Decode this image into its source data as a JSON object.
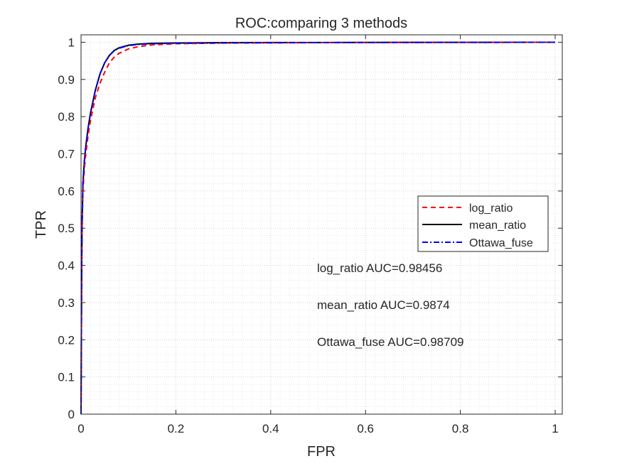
{
  "chart_data": {
    "type": "line",
    "title": "ROC:comparing 3 methods",
    "xlabel": "FPR",
    "ylabel": "TPR",
    "xlim": [
      0,
      1.015
    ],
    "ylim": [
      0,
      1.02
    ],
    "xticks": [
      0,
      0.2,
      0.4,
      0.6,
      0.8,
      1
    ],
    "xtick_labels": [
      "0",
      "0.2",
      "0.4",
      "0.6",
      "0.8",
      "1"
    ],
    "yticks": [
      0,
      0.1,
      0.2,
      0.3,
      0.4,
      0.5,
      0.6,
      0.7,
      0.8,
      0.9,
      1
    ],
    "ytick_labels": [
      "0",
      "0.1",
      "0.2",
      "0.3",
      "0.4",
      "0.5",
      "0.6",
      "0.7",
      "0.8",
      "0.9",
      "1"
    ],
    "grid": "on (major and minor)",
    "legend_position": "right",
    "series": [
      {
        "name": "log_ratio",
        "color": "#ff0000",
        "style": "dashed",
        "x": [
          0,
          0.001,
          0.002,
          0.004,
          0.007,
          0.01,
          0.015,
          0.02,
          0.03,
          0.04,
          0.05,
          0.06,
          0.07,
          0.08,
          0.1,
          0.12,
          0.15,
          0.2,
          0.3,
          0.5,
          0.7,
          1.0
        ],
        "y": [
          0,
          0.3,
          0.48,
          0.6,
          0.66,
          0.7,
          0.75,
          0.79,
          0.85,
          0.89,
          0.92,
          0.945,
          0.96,
          0.97,
          0.982,
          0.988,
          0.993,
          0.996,
          0.998,
          0.999,
          0.9995,
          1.0
        ]
      },
      {
        "name": "mean_ratio",
        "color": "#000000",
        "style": "solid",
        "x": [
          0,
          0.001,
          0.002,
          0.004,
          0.007,
          0.01,
          0.015,
          0.02,
          0.03,
          0.04,
          0.05,
          0.06,
          0.07,
          0.08,
          0.1,
          0.12,
          0.15,
          0.2,
          0.3,
          0.5,
          0.7,
          1.0
        ],
        "y": [
          0,
          0.3,
          0.5,
          0.62,
          0.68,
          0.72,
          0.77,
          0.81,
          0.87,
          0.915,
          0.945,
          0.965,
          0.978,
          0.985,
          0.992,
          0.995,
          0.997,
          0.998,
          0.999,
          0.9993,
          0.9997,
          1.0
        ]
      },
      {
        "name": "Ottawa_fuse",
        "color": "#0000ff",
        "style": "dash-dot",
        "x": [
          0,
          0.001,
          0.002,
          0.004,
          0.007,
          0.01,
          0.015,
          0.02,
          0.03,
          0.04,
          0.05,
          0.06,
          0.07,
          0.08,
          0.1,
          0.12,
          0.15,
          0.2,
          0.3,
          0.5,
          0.7,
          1.0
        ],
        "y": [
          0,
          0.3,
          0.5,
          0.62,
          0.68,
          0.72,
          0.77,
          0.81,
          0.87,
          0.915,
          0.945,
          0.965,
          0.977,
          0.984,
          0.991,
          0.994,
          0.996,
          0.997,
          0.998,
          0.999,
          0.9995,
          1.0
        ]
      }
    ],
    "annotations": [
      "log_ratio AUC=0.98456",
      "mean_ratio AUC=0.9874",
      "Ottawa_fuse AUC=0.98709"
    ]
  }
}
